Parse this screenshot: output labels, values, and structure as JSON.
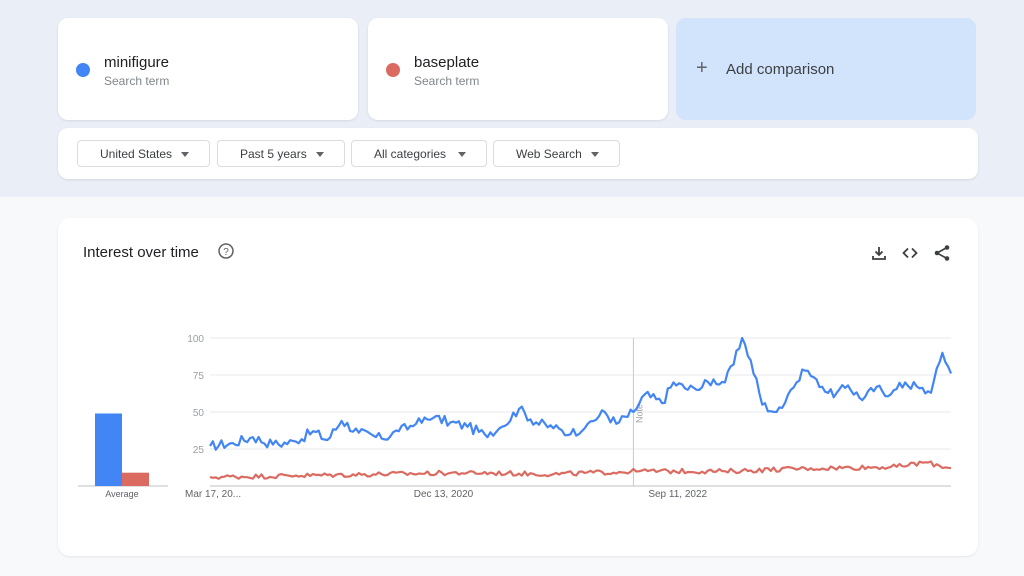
{
  "terms": [
    {
      "name": "minifigure",
      "subtitle": "Search term",
      "color": "#4285f4"
    },
    {
      "name": "baseplate",
      "subtitle": "Search term",
      "color": "#db6b61"
    }
  ],
  "add_comparison": {
    "label": "Add comparison",
    "icon": "plus-icon"
  },
  "filters": [
    {
      "label": "United States"
    },
    {
      "label": "Past 5 years"
    },
    {
      "label": "All categories"
    },
    {
      "label": "Web Search"
    }
  ],
  "chart_card": {
    "title": "Interest over time",
    "icons": [
      "help-icon",
      "download-icon",
      "embed-icon",
      "share-icon"
    ]
  },
  "chart_data": {
    "type": "line",
    "title": "",
    "xlabel": "",
    "ylabel": "",
    "ylim": [
      0,
      100
    ],
    "yticks": [
      25,
      50,
      75,
      100
    ],
    "grid": true,
    "x_tick_labels": [
      "Mar 17, 20...",
      "Dec 13, 2020",
      "Sep 11, 2022"
    ],
    "x_tick_positions": [
      0,
      81,
      163
    ],
    "x_count": 260,
    "note_marker": {
      "label": "Note",
      "index": 148
    },
    "average": {
      "label": "Average",
      "values": [
        {
          "name": "minifigure",
          "value": 49
        },
        {
          "name": "baseplate",
          "value": 9
        }
      ]
    },
    "series": [
      {
        "name": "minifigure",
        "color": "#4285f4",
        "anchors": [
          [
            0,
            27
          ],
          [
            8,
            29
          ],
          [
            15,
            33
          ],
          [
            22,
            28
          ],
          [
            30,
            30
          ],
          [
            36,
            37
          ],
          [
            41,
            31
          ],
          [
            46,
            44
          ],
          [
            52,
            36
          ],
          [
            60,
            32
          ],
          [
            66,
            37
          ],
          [
            72,
            42
          ],
          [
            78,
            46
          ],
          [
            84,
            43
          ],
          [
            90,
            40
          ],
          [
            96,
            35
          ],
          [
            102,
            40
          ],
          [
            108,
            52
          ],
          [
            114,
            43
          ],
          [
            120,
            39
          ],
          [
            126,
            35
          ],
          [
            132,
            42
          ],
          [
            138,
            50
          ],
          [
            142,
            42
          ],
          [
            148,
            50
          ],
          [
            152,
            62
          ],
          [
            158,
            56
          ],
          [
            162,
            70
          ],
          [
            166,
            66
          ],
          [
            170,
            65
          ],
          [
            176,
            72
          ],
          [
            180,
            70
          ],
          [
            183,
            82
          ],
          [
            186,
            100
          ],
          [
            189,
            85
          ],
          [
            193,
            55
          ],
          [
            198,
            50
          ],
          [
            203,
            65
          ],
          [
            208,
            78
          ],
          [
            212,
            72
          ],
          [
            218,
            60
          ],
          [
            223,
            68
          ],
          [
            228,
            58
          ],
          [
            233,
            67
          ],
          [
            238,
            62
          ],
          [
            243,
            70
          ],
          [
            248,
            66
          ],
          [
            252,
            63
          ],
          [
            256,
            90
          ],
          [
            259,
            76
          ]
        ],
        "noise": 3.5
      },
      {
        "name": "baseplate",
        "color": "#db6b61",
        "anchors": [
          [
            0,
            6
          ],
          [
            30,
            7
          ],
          [
            60,
            8
          ],
          [
            90,
            9
          ],
          [
            120,
            8
          ],
          [
            150,
            10
          ],
          [
            180,
            10
          ],
          [
            210,
            12
          ],
          [
            240,
            13
          ],
          [
            250,
            16
          ],
          [
            259,
            12
          ]
        ],
        "noise": 1.6
      }
    ]
  }
}
